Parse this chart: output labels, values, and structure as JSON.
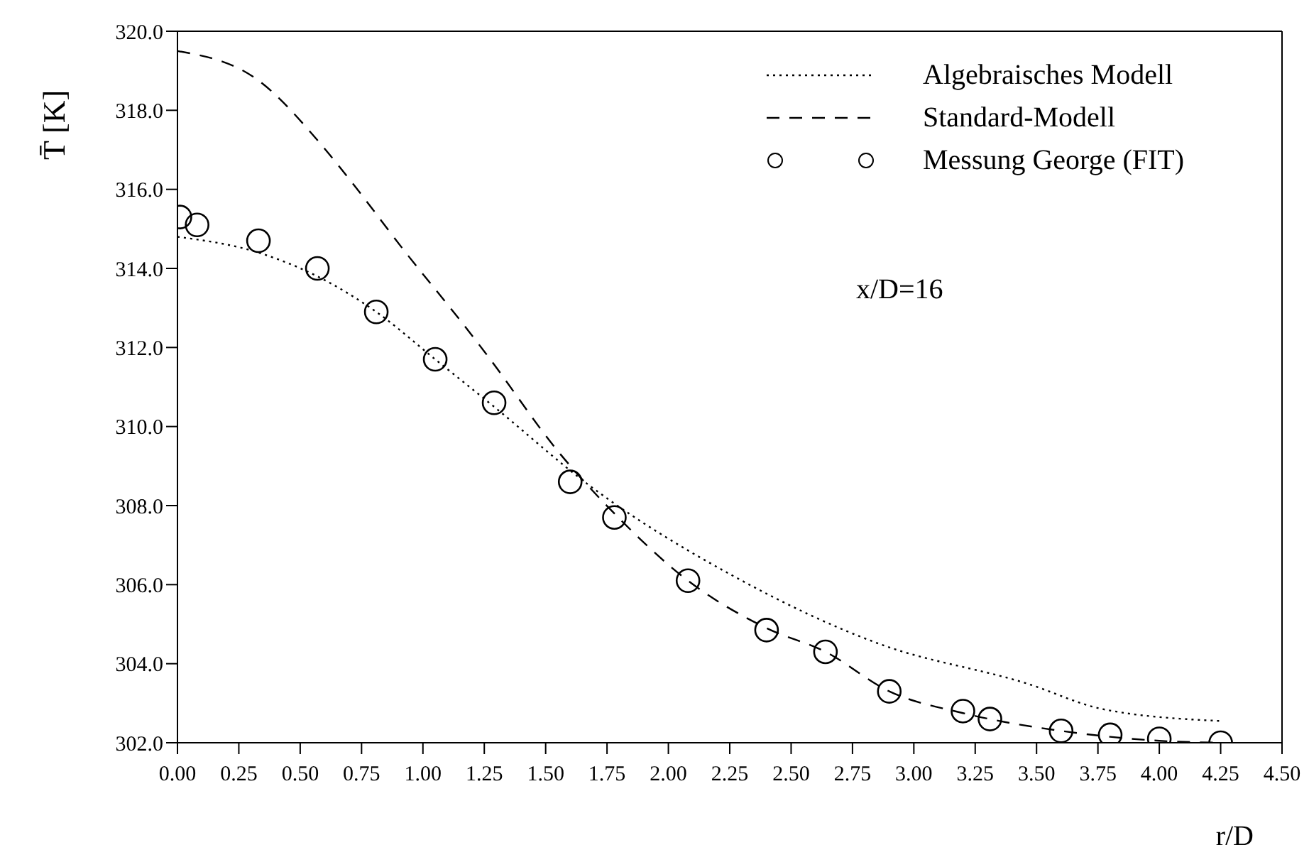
{
  "chart_data": {
    "type": "line",
    "xlabel": "r/D",
    "ylabel": "T̄ [K]",
    "xlim": [
      0,
      4.5
    ],
    "xticks": [
      {
        "value": 0,
        "label": "0.00"
      },
      {
        "value": 0.25,
        "label": "0.25"
      },
      {
        "value": 0.5,
        "label": "0.50"
      },
      {
        "value": 0.75,
        "label": "0.75"
      },
      {
        "value": 1,
        "label": "1.00"
      },
      {
        "value": 1.25,
        "label": "1.25"
      },
      {
        "value": 1.5,
        "label": "1.50"
      },
      {
        "value": 1.75,
        "label": "1.75"
      },
      {
        "value": 2,
        "label": "2.00"
      },
      {
        "value": 2.25,
        "label": "2.25"
      },
      {
        "value": 2.5,
        "label": "2.50"
      },
      {
        "value": 2.75,
        "label": "2.75"
      },
      {
        "value": 3,
        "label": "3.00"
      },
      {
        "value": 3.25,
        "label": "3.25"
      },
      {
        "value": 3.5,
        "label": "3.50"
      },
      {
        "value": 3.75,
        "label": "3.75"
      },
      {
        "value": 4,
        "label": "4.00"
      },
      {
        "value": 4.25,
        "label": "4.25"
      },
      {
        "value": 4.5,
        "label": "4.50"
      }
    ],
    "ylim": [
      302,
      320
    ],
    "yticks": [
      {
        "value": 302,
        "label": "302.0"
      },
      {
        "value": 304,
        "label": "304.0"
      },
      {
        "value": 306,
        "label": "306.0"
      },
      {
        "value": 308,
        "label": "308.0"
      },
      {
        "value": 310,
        "label": "310.0"
      },
      {
        "value": 312,
        "label": "312.0"
      },
      {
        "value": 314,
        "label": "314.0"
      },
      {
        "value": 316,
        "label": "316.0"
      },
      {
        "value": 318,
        "label": "318.0"
      },
      {
        "value": 320,
        "label": "320.0"
      }
    ],
    "grid": false,
    "legend": "top right",
    "annotations": [
      "x/D=16"
    ],
    "series": [
      {
        "name": "Algebraisches Modell",
        "type": "line",
        "color": "#000000",
        "line_style": "dotted",
        "marker": "none",
        "x": [
          0,
          0.33,
          0.57,
          0.81,
          1.05,
          1.29,
          1.68,
          2.27,
          2.86,
          3.46,
          3.77,
          4.25
        ],
        "values": [
          314.8,
          314.4,
          313.8,
          312.9,
          311.7,
          310.5,
          308.5,
          306.2,
          304.5,
          303.5,
          302.85,
          302.55
        ]
      },
      {
        "name": "Standard-Modell",
        "type": "line",
        "color": "#000000",
        "line_style": "dashed",
        "marker": "none",
        "x": [
          0,
          0.32,
          0.59,
          0.72,
          0.93,
          1.15,
          1.25,
          1.56,
          1.78,
          2.08,
          2.4,
          2.64,
          2.9,
          3.2,
          3.6,
          3.8,
          4.0,
          4.25
        ],
        "values": [
          319.5,
          318.8,
          317.1,
          316.1,
          314.4,
          312.7,
          311.9,
          309.3,
          307.8,
          306.1,
          304.9,
          304.3,
          303.3,
          302.75,
          302.3,
          302.15,
          302.05,
          302.0
        ]
      },
      {
        "name": "Messung George (FIT)",
        "type": "scatter",
        "color": "#000000",
        "marker": "circle",
        "x": [
          0.01,
          0.08,
          0.33,
          0.57,
          0.81,
          1.05,
          1.29,
          1.6,
          1.78,
          2.08,
          2.4,
          2.64,
          2.9,
          3.2,
          3.31,
          3.6,
          3.8,
          4.0,
          4.25
        ],
        "values": [
          315.3,
          315.1,
          314.7,
          314.0,
          312.9,
          311.7,
          310.6,
          308.6,
          307.7,
          306.1,
          304.85,
          304.3,
          303.3,
          302.8,
          302.6,
          302.3,
          302.2,
          302.1,
          302.0
        ]
      }
    ]
  }
}
